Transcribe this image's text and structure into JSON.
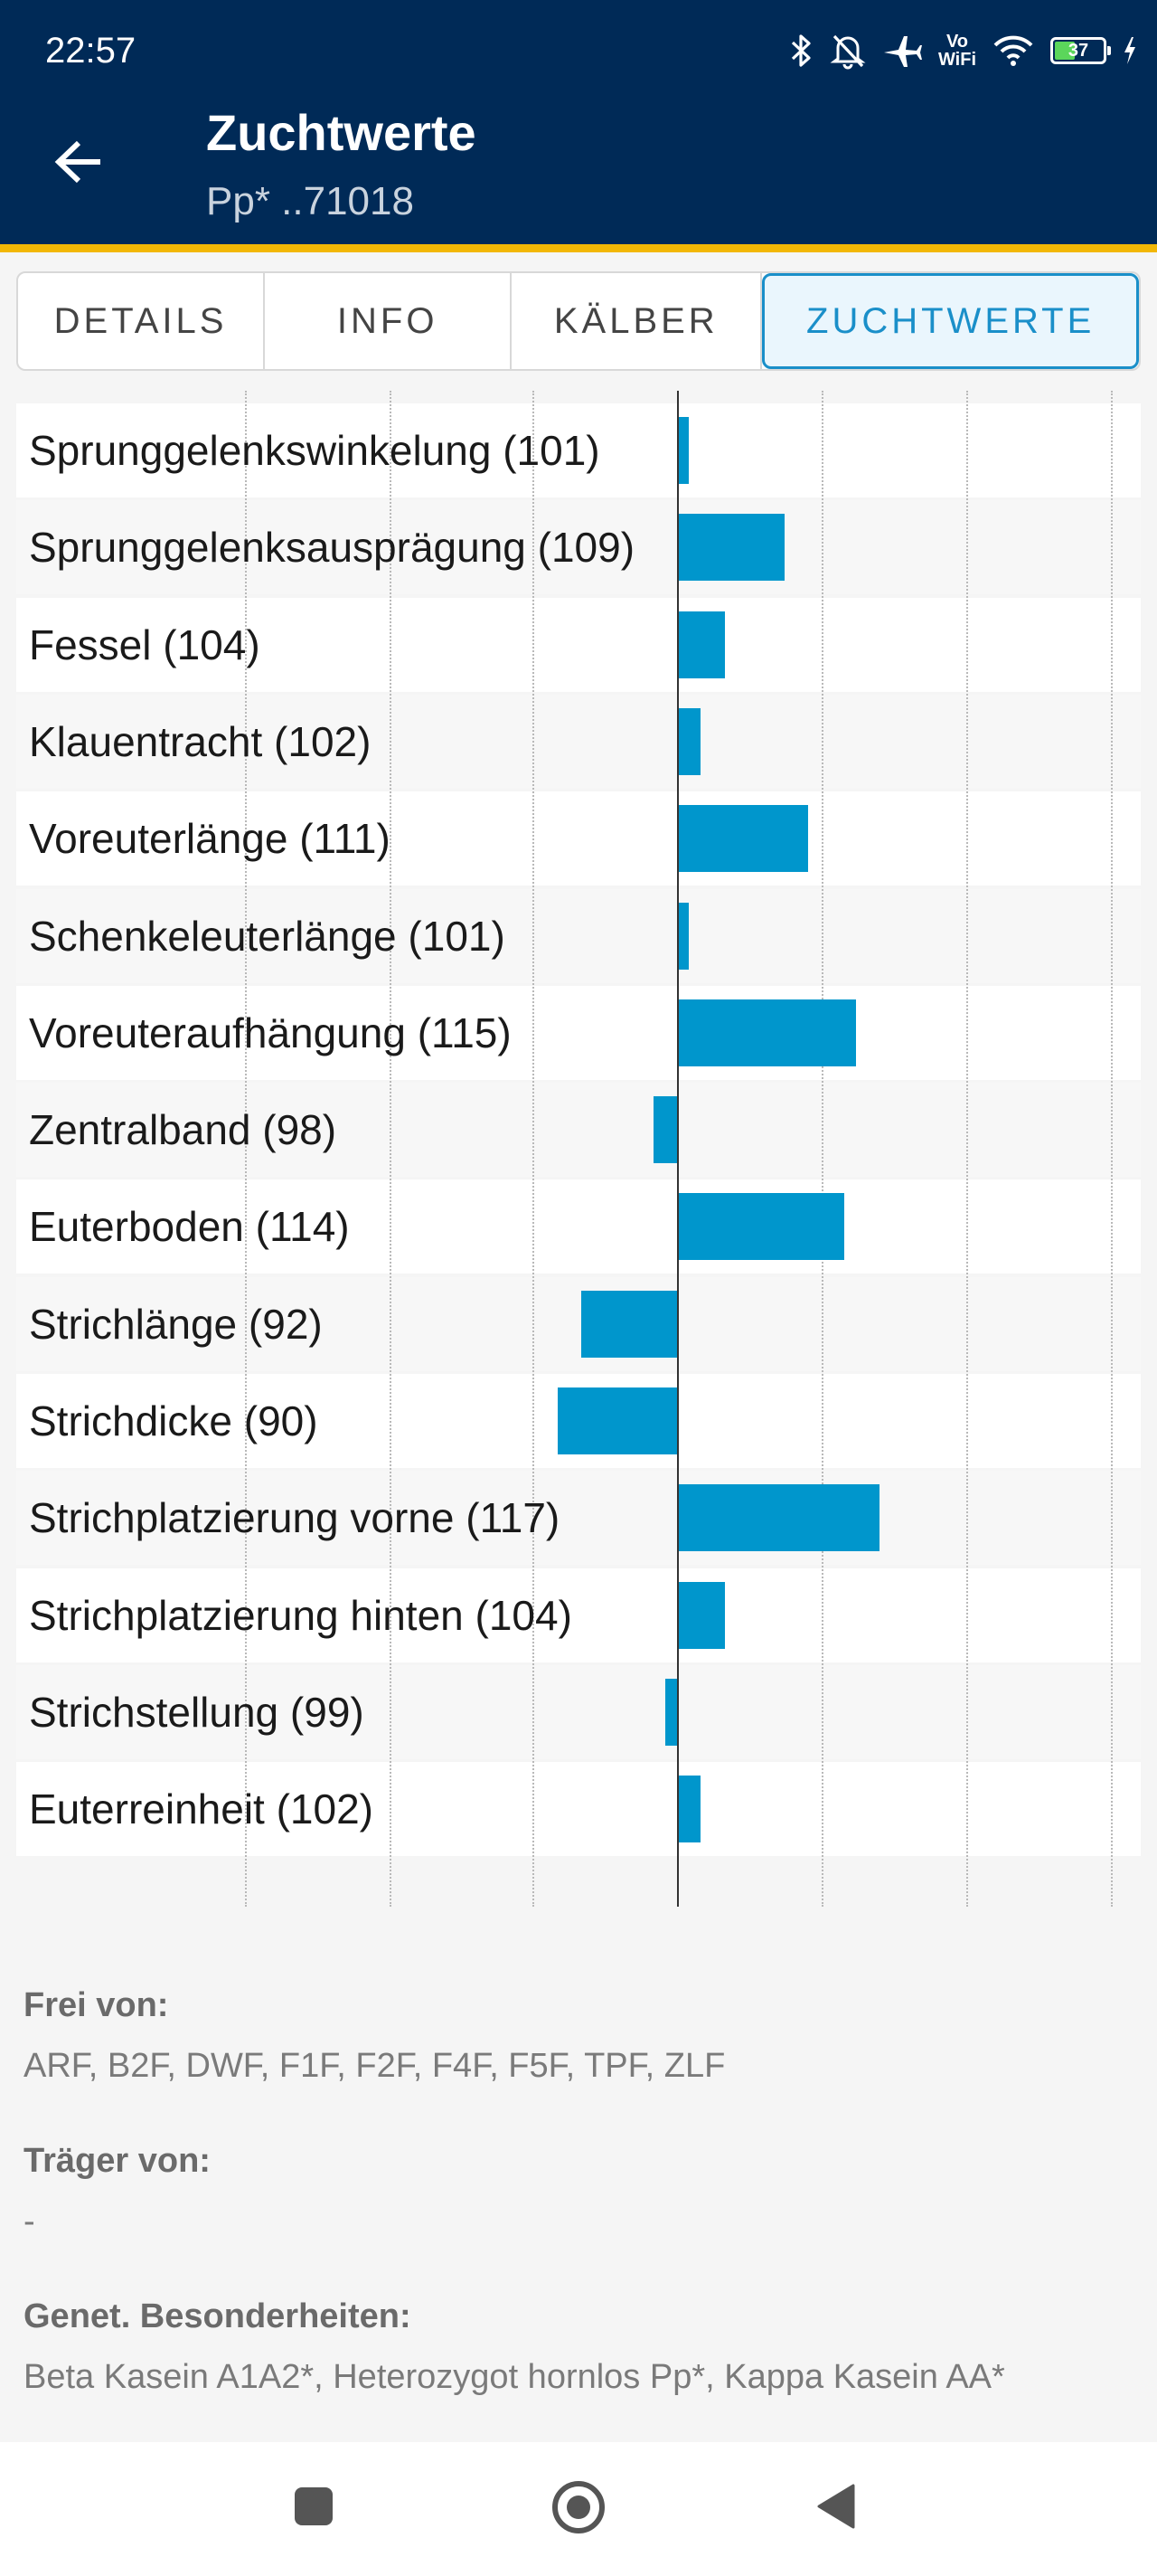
{
  "status_bar": {
    "time": "22:57",
    "vowifi_top": "Vo",
    "vowifi_bottom": "WiFi",
    "battery_level": "37",
    "icons": [
      "bluetooth-icon",
      "bell-off-icon",
      "airplane-icon",
      "vowifi-icon",
      "wifi-icon",
      "battery-icon",
      "charging-icon"
    ]
  },
  "app_bar": {
    "title": "Zuchtwerte",
    "subtitle": "Pp* ..71018",
    "back_icon": "arrow-left-icon"
  },
  "tabs": [
    {
      "label": "DETAILS",
      "active": false
    },
    {
      "label": "INFO",
      "active": false
    },
    {
      "label": "KÄLBER",
      "active": false
    },
    {
      "label": "ZUCHTWERTE",
      "active": true
    }
  ],
  "chart_data": {
    "type": "bar",
    "orientation": "horizontal",
    "baseline": 100,
    "categories": [
      "Sprunggelenkswinkelung (101)",
      "Sprunggelenksausprägung (109)",
      "Fessel (104)",
      "Klauentracht (102)",
      "Voreuterlänge (111)",
      "Schenkeleuterlänge (101)",
      "Voreuteraufhängung (115)",
      "Zentralband (98)",
      "Euterboden (114)",
      "Strichlänge (92)",
      "Strichdicke (90)",
      "Strichplatzierung vorne (117)",
      "Strichplatzierung hinten (104)",
      "Strichstellung (99)",
      "Euterreinheit (102)"
    ],
    "values": [
      101,
      109,
      104,
      102,
      111,
      101,
      115,
      98,
      114,
      92,
      90,
      117,
      104,
      99,
      102
    ],
    "bar_color": "#0096cc",
    "grid": true
  },
  "info": {
    "frei_von_label": "Frei von:",
    "frei_von_value": "ARF, B2F, DWF, F1F, F2F, F4F, F5F, TPF, ZLF",
    "traeger_von_label": "Träger von:",
    "traeger_von_value": "-",
    "genet_label": "Genet. Besonderheiten:",
    "genet_value": "Beta Kasein A1A2*, Heterozygot hornlos Pp*, Kappa Kasein AA*"
  },
  "nav_bar": {
    "icons": [
      "recents-square-icon",
      "home-circle-icon",
      "back-triangle-icon"
    ]
  }
}
